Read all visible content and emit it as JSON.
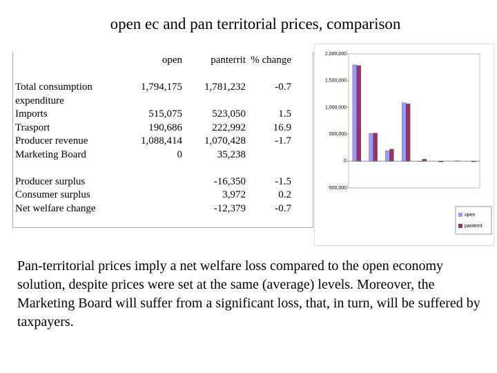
{
  "title": "open ec and pan territorial prices, comparison",
  "table": {
    "header": [
      "open",
      "panterrit",
      "% change"
    ],
    "groups": [
      [
        {
          "label": "Total consumption expenditure",
          "open": "1,794,175",
          "panterrit": "1,781,232",
          "change": "-0.7"
        },
        {
          "label": "Imports",
          "open": "515,075",
          "panterrit": "523,050",
          "change": "1.5"
        },
        {
          "label": "Trasport",
          "open": "190,686",
          "panterrit": "222,992",
          "change": "16.9"
        },
        {
          "label": "Producer revenue",
          "open": "1,088,414",
          "panterrit": "1,070,428",
          "change": "-1.7"
        },
        {
          "label": "Marketing Board",
          "open": "0",
          "panterrit": "35,238"
        }
      ],
      [
        {
          "label": "Producer surplus",
          "panterrit": "-16,350",
          "change": "-1.5"
        },
        {
          "label": "Consumer surplus",
          "panterrit": "3,972",
          "change": "0.2"
        },
        {
          "label": "Net welfare change",
          "panterrit": "-12,379",
          "change": "-0.7"
        }
      ]
    ]
  },
  "chart_data": {
    "type": "bar",
    "categories": [
      null,
      null,
      null,
      null,
      null,
      null,
      null,
      null
    ],
    "series": [
      {
        "name": "open",
        "color": "#9999ff",
        "values": [
          1794175,
          515075,
          190686,
          1088414,
          0,
          null,
          null,
          null
        ]
      },
      {
        "name": "panterrit",
        "color": "#993366",
        "values": [
          1781232,
          523050,
          222992,
          1070428,
          35238,
          -16350,
          3972,
          -12379
        ]
      }
    ],
    "ylim": [
      -500000,
      2000000
    ],
    "yticks": [
      {
        "value": -500000,
        "label": "-500,000"
      },
      0,
      {
        "value": 500000,
        "label": "500,000"
      },
      {
        "value": 1000000,
        "label": "1,000,000"
      },
      {
        "value": 1500000,
        "label": "1,500,000"
      },
      {
        "value": 2000000,
        "label": "2,000,000"
      }
    ]
  },
  "paragraph": "Pan-territorial prices imply a net welfare loss compared to the open economy solution, despite prices were set at the same (average) levels. Moreover, the Marketing Board will suffer from a significant loss, that, in turn, will be suffered by taxpayers."
}
